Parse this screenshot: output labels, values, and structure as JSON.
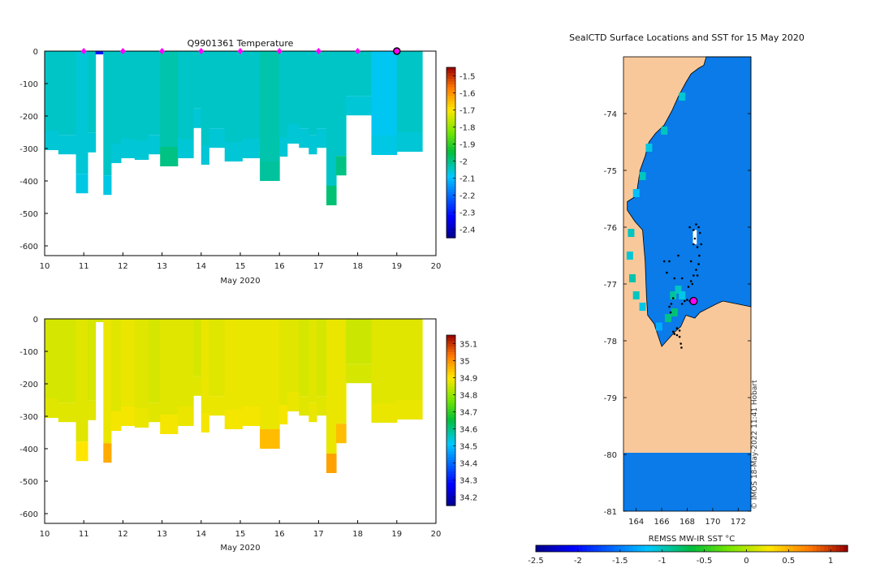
{
  "colors": {
    "land": "#f9c89a",
    "ocean": "#0a7be8",
    "axis": "#000000",
    "profile_marker": "#ff00ff"
  },
  "chart_data": [
    {
      "type": "heatmap",
      "id": "temperature",
      "title": "Q9901361  Temperature",
      "xlabel": "May 2020",
      "ylabel": "",
      "xlim": [
        10,
        20
      ],
      "ylim": [
        -630,
        0
      ],
      "xticks": [
        10,
        11,
        12,
        13,
        14,
        15,
        16,
        17,
        18,
        19,
        20
      ],
      "yticks": [
        0,
        -100,
        -200,
        -300,
        -400,
        -500,
        -600
      ],
      "colorbar": {
        "range": [
          -2.45,
          -1.45
        ],
        "ticks": [
          -1.5,
          -1.6,
          -1.7,
          -1.8,
          -1.9,
          -2,
          -2.1,
          -2.2,
          -2.3,
          -2.4
        ],
        "colormap": "jet"
      },
      "surface_markers_x": [
        11,
        12,
        13,
        14,
        15,
        16,
        17,
        18
      ],
      "current_marker_x": 19,
      "columns": [
        {
          "t0": 10.0,
          "t1": 10.35,
          "depth": 305,
          "top": -2.05,
          "bottom": -2.06
        },
        {
          "t0": 10.35,
          "t1": 10.8,
          "depth": 318,
          "top": -2.05,
          "bottom": -2.06
        },
        {
          "t0": 10.8,
          "t1": 11.1,
          "depth": 438,
          "top": -2.06,
          "bottom": -2.07
        },
        {
          "t0": 11.1,
          "t1": 11.3,
          "depth": 312,
          "top": -2.05,
          "bottom": -2.06
        },
        {
          "t0": 11.3,
          "t1": 11.5,
          "depth": 0,
          "top": -2.3,
          "bottom": -2.3
        },
        {
          "t0": 11.5,
          "t1": 11.7,
          "depth": 443,
          "top": -2.05,
          "bottom": -2.07
        },
        {
          "t0": 11.7,
          "t1": 11.95,
          "depth": 345,
          "top": -2.05,
          "bottom": -2.06
        },
        {
          "t0": 11.95,
          "t1": 12.3,
          "depth": 330,
          "top": -2.05,
          "bottom": -2.06
        },
        {
          "t0": 12.3,
          "t1": 12.65,
          "depth": 335,
          "top": -2.05,
          "bottom": -2.06
        },
        {
          "t0": 12.65,
          "t1": 12.95,
          "depth": 318,
          "top": -2.05,
          "bottom": -2.06
        },
        {
          "t0": 12.95,
          "t1": 13.4,
          "depth": 355,
          "top": -2.03,
          "bottom": -2.0
        },
        {
          "t0": 13.4,
          "t1": 13.8,
          "depth": 330,
          "top": -2.05,
          "bottom": -2.06
        },
        {
          "t0": 13.8,
          "t1": 14.0,
          "depth": 237,
          "top": -2.05,
          "bottom": -2.06
        },
        {
          "t0": 14.0,
          "t1": 14.2,
          "depth": 350,
          "top": -2.05,
          "bottom": -2.06
        },
        {
          "t0": 14.2,
          "t1": 14.6,
          "depth": 298,
          "top": -2.05,
          "bottom": -2.06
        },
        {
          "t0": 14.6,
          "t1": 15.05,
          "depth": 340,
          "top": -2.05,
          "bottom": -2.06
        },
        {
          "t0": 15.05,
          "t1": 15.5,
          "depth": 330,
          "top": -2.05,
          "bottom": -2.06
        },
        {
          "t0": 15.5,
          "t1": 16.0,
          "depth": 400,
          "top": -2.03,
          "bottom": -2.02
        },
        {
          "t0": 16.0,
          "t1": 16.2,
          "depth": 325,
          "top": -2.05,
          "bottom": -2.06
        },
        {
          "t0": 16.2,
          "t1": 16.5,
          "depth": 285,
          "top": -2.05,
          "bottom": -2.06
        },
        {
          "t0": 16.5,
          "t1": 16.75,
          "depth": 298,
          "top": -2.05,
          "bottom": -2.06
        },
        {
          "t0": 16.75,
          "t1": 16.95,
          "depth": 318,
          "top": -2.05,
          "bottom": -2.06
        },
        {
          "t0": 16.95,
          "t1": 17.2,
          "depth": 298,
          "top": -2.05,
          "bottom": -2.06
        },
        {
          "t0": 17.2,
          "t1": 17.45,
          "depth": 475,
          "top": -2.05,
          "bottom": -1.99
        },
        {
          "t0": 17.45,
          "t1": 17.7,
          "depth": 383,
          "top": -2.05,
          "bottom": -2.0
        },
        {
          "t0": 17.7,
          "t1": 18.35,
          "depth": 198,
          "top": -2.05,
          "bottom": -2.06
        },
        {
          "t0": 18.35,
          "t1": 19.0,
          "depth": 320,
          "top": -2.08,
          "bottom": -2.07
        },
        {
          "t0": 19.0,
          "t1": 19.65,
          "depth": 310,
          "top": -2.05,
          "bottom": -2.06
        }
      ]
    },
    {
      "type": "heatmap",
      "id": "salinity",
      "title": "",
      "xlabel": "May 2020",
      "ylabel": "",
      "xlim": [
        10,
        20
      ],
      "ylim": [
        -630,
        0
      ],
      "xticks": [
        10,
        11,
        12,
        13,
        14,
        15,
        16,
        17,
        18,
        19,
        20
      ],
      "yticks": [
        0,
        -100,
        -200,
        -300,
        -400,
        -500,
        -600
      ],
      "colorbar": {
        "range": [
          34.15,
          35.15
        ],
        "ticks": [
          35.1,
          35,
          34.9,
          34.8,
          34.7,
          34.6,
          34.5,
          34.4,
          34.3,
          34.2
        ],
        "colormap": "jet"
      },
      "columns": [
        {
          "t0": 10.0,
          "t1": 10.35,
          "depth": 305,
          "top": 34.86,
          "bottom": 34.87
        },
        {
          "t0": 10.35,
          "t1": 10.8,
          "depth": 318,
          "top": 34.86,
          "bottom": 34.87
        },
        {
          "t0": 10.8,
          "t1": 11.1,
          "depth": 438,
          "top": 34.87,
          "bottom": 34.9
        },
        {
          "t0": 11.1,
          "t1": 11.3,
          "depth": 312,
          "top": 34.86,
          "bottom": 34.87
        },
        {
          "t0": 11.3,
          "t1": 11.5,
          "depth": 0,
          "top": 34.86,
          "bottom": 34.86
        },
        {
          "t0": 11.5,
          "t1": 11.7,
          "depth": 443,
          "top": 34.88,
          "bottom": 34.97
        },
        {
          "t0": 11.7,
          "t1": 11.95,
          "depth": 345,
          "top": 34.87,
          "bottom": 34.89
        },
        {
          "t0": 11.95,
          "t1": 12.3,
          "depth": 330,
          "top": 34.88,
          "bottom": 34.89
        },
        {
          "t0": 12.3,
          "t1": 12.65,
          "depth": 335,
          "top": 34.87,
          "bottom": 34.88
        },
        {
          "t0": 12.65,
          "t1": 12.95,
          "depth": 318,
          "top": 34.86,
          "bottom": 34.87
        },
        {
          "t0": 12.95,
          "t1": 13.4,
          "depth": 355,
          "top": 34.87,
          "bottom": 34.89
        },
        {
          "t0": 13.4,
          "t1": 13.8,
          "depth": 330,
          "top": 34.87,
          "bottom": 34.88
        },
        {
          "t0": 13.8,
          "t1": 14.0,
          "depth": 237,
          "top": 34.86,
          "bottom": 34.87
        },
        {
          "t0": 14.0,
          "t1": 14.2,
          "depth": 350,
          "top": 34.88,
          "bottom": 34.89
        },
        {
          "t0": 14.2,
          "t1": 14.6,
          "depth": 298,
          "top": 34.87,
          "bottom": 34.88
        },
        {
          "t0": 14.6,
          "t1": 15.05,
          "depth": 340,
          "top": 34.88,
          "bottom": 34.89
        },
        {
          "t0": 15.05,
          "t1": 15.5,
          "depth": 330,
          "top": 34.88,
          "bottom": 34.89
        },
        {
          "t0": 15.5,
          "t1": 16.0,
          "depth": 400,
          "top": 34.88,
          "bottom": 34.95
        },
        {
          "t0": 16.0,
          "t1": 16.2,
          "depth": 325,
          "top": 34.87,
          "bottom": 34.89
        },
        {
          "t0": 16.2,
          "t1": 16.5,
          "depth": 285,
          "top": 34.87,
          "bottom": 34.88
        },
        {
          "t0": 16.5,
          "t1": 16.75,
          "depth": 298,
          "top": 34.86,
          "bottom": 34.87
        },
        {
          "t0": 16.75,
          "t1": 16.95,
          "depth": 318,
          "top": 34.87,
          "bottom": 34.88
        },
        {
          "t0": 16.95,
          "t1": 17.2,
          "depth": 298,
          "top": 34.86,
          "bottom": 34.87
        },
        {
          "t0": 17.2,
          "t1": 17.45,
          "depth": 475,
          "top": 34.88,
          "bottom": 34.98
        },
        {
          "t0": 17.45,
          "t1": 17.7,
          "depth": 383,
          "top": 34.88,
          "bottom": 34.95
        },
        {
          "t0": 17.7,
          "t1": 18.35,
          "depth": 198,
          "top": 34.85,
          "bottom": 34.86
        },
        {
          "t0": 18.35,
          "t1": 19.0,
          "depth": 320,
          "top": 34.87,
          "bottom": 34.88
        },
        {
          "t0": 19.0,
          "t1": 19.65,
          "depth": 310,
          "top": 34.87,
          "bottom": 34.88
        }
      ]
    },
    {
      "type": "heatmap",
      "id": "sst_map",
      "title": "SealCTD Surface Locations and SST for 15 May 2020",
      "xlabel": "",
      "ylabel": "",
      "xlim": [
        163,
        173
      ],
      "ylim": [
        -81,
        -73
      ],
      "xticks": [
        164,
        166,
        168,
        170,
        172
      ],
      "yticks": [
        -74,
        -75,
        -76,
        -77,
        -78,
        -79,
        -80,
        -81
      ],
      "colorbar": {
        "label": "REMSS MW-IR SST °C",
        "range": [
          -2.5,
          1.2
        ],
        "ticks": [
          -2.5,
          -2,
          -1.5,
          -1,
          -0.5,
          0,
          0.5,
          1
        ],
        "colormap": "jet"
      },
      "ocean_sst": -1.6,
      "credit": "© IMOS 18-May-2022 11:41 Hobart",
      "seal_track": [
        [
          166.9,
          -77.84
        ],
        [
          167.0,
          -77.88
        ],
        [
          167.2,
          -77.9
        ],
        [
          167.4,
          -77.93
        ],
        [
          167.5,
          -78.05
        ],
        [
          167.55,
          -78.12
        ],
        [
          167.4,
          -77.82
        ],
        [
          167.2,
          -77.78
        ],
        [
          166.9,
          -77.25
        ],
        [
          166.75,
          -77.35
        ],
        [
          166.6,
          -77.4
        ],
        [
          166.7,
          -77.5
        ],
        [
          167.6,
          -77.35
        ],
        [
          167.8,
          -77.3
        ],
        [
          168.0,
          -77.28
        ],
        [
          168.2,
          -77.3
        ],
        [
          168.4,
          -77.33
        ],
        [
          168.6,
          -77.35
        ],
        [
          168.1,
          -77.05
        ],
        [
          168.3,
          -76.95
        ],
        [
          168.5,
          -76.85
        ],
        [
          168.7,
          -76.75
        ],
        [
          168.9,
          -76.65
        ],
        [
          168.95,
          -76.5
        ],
        [
          168.8,
          -76.35
        ],
        [
          168.6,
          -76.2
        ],
        [
          168.5,
          -76.05
        ],
        [
          168.7,
          -75.95
        ],
        [
          168.9,
          -76.0
        ],
        [
          169.0,
          -76.1
        ],
        [
          169.1,
          -76.3
        ],
        [
          168.2,
          -76.0
        ],
        [
          167.3,
          -76.5
        ],
        [
          166.6,
          -76.6
        ],
        [
          166.4,
          -76.8
        ],
        [
          166.2,
          -76.6
        ],
        [
          167.0,
          -76.9
        ],
        [
          167.6,
          -76.9
        ],
        [
          168.3,
          -76.6
        ],
        [
          168.5,
          -76.3
        ],
        [
          168.8,
          -76.85
        ],
        [
          168.4,
          -77.0
        ]
      ],
      "current_location": [
        168.5,
        -77.3
      ]
    }
  ]
}
